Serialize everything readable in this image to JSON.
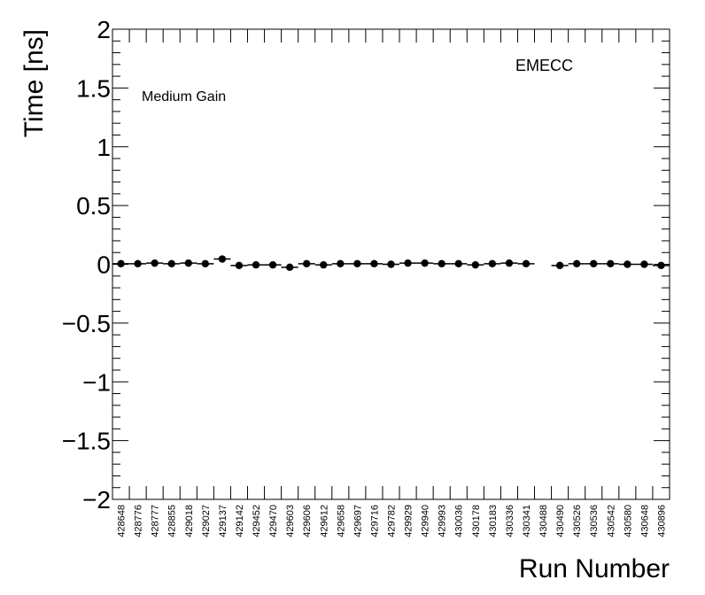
{
  "chart_data": {
    "type": "scatter",
    "xlabel": "Run Number",
    "ylabel": "Time [ns]",
    "ylim": [
      -2,
      2
    ],
    "y_ticks": [
      "2",
      "1.5",
      "1",
      "0.5",
      "0",
      "−0.5",
      "−1",
      "−1.5",
      "−2"
    ],
    "y_tick_values": [
      2,
      1.5,
      1,
      0.5,
      0,
      -0.5,
      -1,
      -1.5,
      -2
    ],
    "annotations": {
      "region": "EMECC",
      "gain": "Medium Gain"
    },
    "categories": [
      "428648",
      "428776",
      "428777",
      "428855",
      "429018",
      "429027",
      "429137",
      "429142",
      "429452",
      "429470",
      "429603",
      "429606",
      "429612",
      "429658",
      "429697",
      "429716",
      "429782",
      "429929",
      "429940",
      "429993",
      "430036",
      "430178",
      "430183",
      "430336",
      "430341",
      "430488",
      "430490",
      "430526",
      "430536",
      "430542",
      "430580",
      "430648",
      "430896"
    ],
    "values": [
      0.005,
      0.005,
      0.01,
      0.005,
      0.01,
      0.005,
      0.045,
      -0.01,
      -0.005,
      -0.005,
      -0.025,
      0.005,
      -0.005,
      0.005,
      0.005,
      0.005,
      0.0,
      0.01,
      0.01,
      0.005,
      0.005,
      -0.005,
      0.005,
      0.01,
      0.005,
      null,
      -0.01,
      0.005,
      0.005,
      0.005,
      0.0,
      0.0,
      -0.01
    ],
    "marker_color": "#000000"
  }
}
